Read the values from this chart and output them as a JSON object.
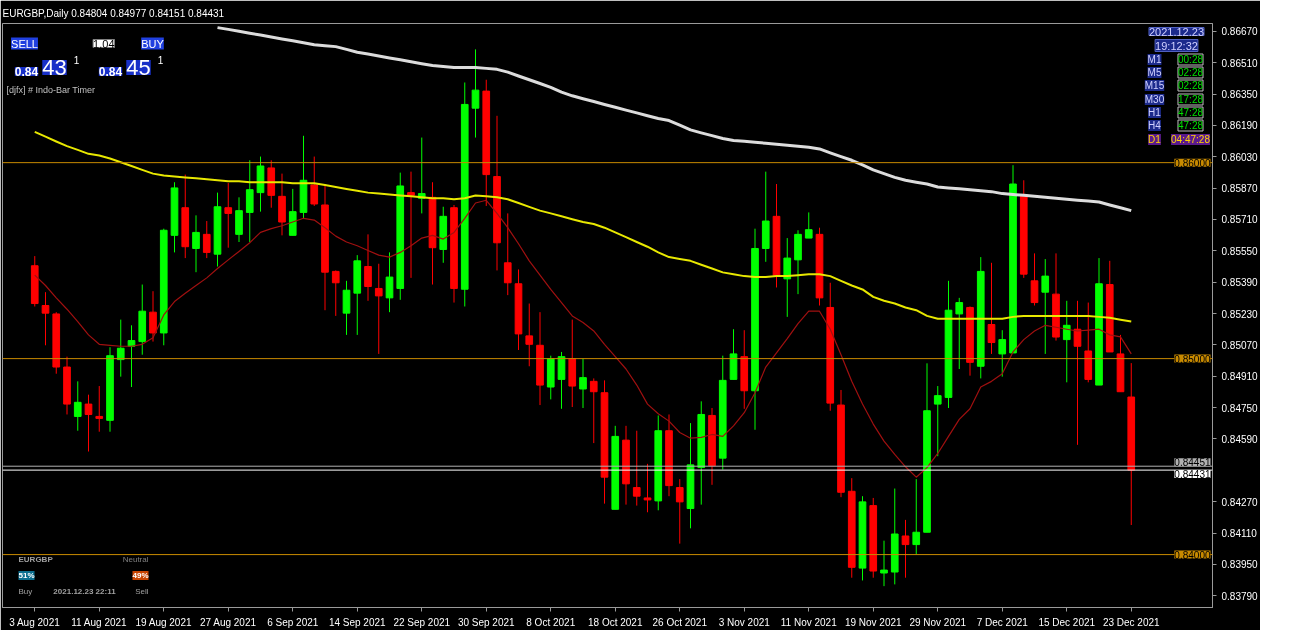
{
  "chart_data": {
    "type": "candlestick",
    "title": "EURGBP,Daily  0.84804 0.84977 0.84151 0.84431",
    "categories": [
      "3 Aug 2021",
      null,
      null,
      null,
      null,
      null,
      "11 Aug 2021",
      null,
      null,
      null,
      null,
      null,
      "19 Aug 2021",
      null,
      null,
      null,
      null,
      null,
      "27 Aug 2021",
      null,
      null,
      null,
      null,
      null,
      "6 Sep 2021",
      null,
      null,
      null,
      null,
      null,
      "14 Sep 2021",
      null,
      null,
      null,
      null,
      null,
      "22 Sep 2021",
      null,
      null,
      null,
      null,
      null,
      "30 Sep 2021",
      null,
      null,
      null,
      null,
      null,
      "8 Oct 2021",
      null,
      null,
      null,
      null,
      null,
      "18 Oct 2021",
      null,
      null,
      null,
      null,
      null,
      "26 Oct 2021",
      null,
      null,
      null,
      null,
      null,
      "3 Nov 2021",
      null,
      null,
      null,
      null,
      null,
      "11 Nov 2021",
      null,
      null,
      null,
      null,
      null,
      "19 Nov 2021",
      null,
      null,
      null,
      null,
      null,
      "29 Nov 2021",
      null,
      null,
      null,
      null,
      null,
      "7 Dec 2021",
      null,
      null,
      null,
      null,
      null,
      "15 Dec 2021",
      null,
      null,
      null,
      null,
      null,
      "23 Dec 2021"
    ],
    "ohlc": [
      [
        0.85474,
        0.85523,
        0.85266,
        0.85281
      ],
      [
        0.85271,
        0.85339,
        0.85068,
        0.85232
      ],
      [
        0.85228,
        0.85237,
        0.84923,
        0.84957
      ],
      [
        0.84957,
        0.8501,
        0.84715,
        0.84768
      ],
      [
        0.84705,
        0.84884,
        0.84632,
        0.84777
      ],
      [
        0.84768,
        0.84816,
        0.84526,
        0.84715
      ],
      [
        0.84705,
        0.8486,
        0.84627,
        0.84695
      ],
      [
        0.84685,
        0.85058,
        0.84627,
        0.85015
      ],
      [
        0.84995,
        0.85199,
        0.84908,
        0.85053
      ],
      [
        0.85063,
        0.8517,
        0.84855,
        0.85092
      ],
      [
        0.85087,
        0.85378,
        0.8502,
        0.85242
      ],
      [
        0.85237,
        0.85344,
        0.85087,
        0.85131
      ],
      [
        0.85131,
        0.85663,
        0.85068,
        0.85655
      ],
      [
        0.85629,
        0.859,
        0.85542,
        0.85871
      ],
      [
        0.8577,
        0.85939,
        0.85513,
        0.85571
      ],
      [
        0.85562,
        0.85731,
        0.85441,
        0.85644
      ],
      [
        0.85634,
        0.85702,
        0.85513,
        0.85542
      ],
      [
        0.85533,
        0.85847,
        0.8547,
        0.85775
      ],
      [
        0.8577,
        0.85896,
        0.85566,
        0.85741
      ],
      [
        0.85634,
        0.85823,
        0.85595,
        0.85755
      ],
      [
        0.85746,
        0.86012,
        0.85595,
        0.85862
      ],
      [
        0.85847,
        0.86031,
        0.8575,
        0.85983
      ],
      [
        0.85973,
        0.86012,
        0.8577,
        0.85833
      ],
      [
        0.85828,
        0.85944,
        0.85629,
        0.85697
      ],
      [
        0.85629,
        0.85866,
        0.85629,
        0.8575
      ],
      [
        0.85746,
        0.86137,
        0.85712,
        0.8591
      ],
      [
        0.85886,
        0.86031,
        0.85779,
        0.85789
      ],
      [
        0.85784,
        0.85886,
        0.85247,
        0.85441
      ],
      [
        0.85445,
        0.8545,
        0.85218,
        0.85387
      ],
      [
        0.85232,
        0.85397,
        0.85121,
        0.85349
      ],
      [
        0.85334,
        0.85528,
        0.85121,
        0.85499
      ],
      [
        0.8547,
        0.85634,
        0.85295,
        0.85368
      ],
      [
        0.85358,
        0.85484,
        0.85024,
        0.8532
      ],
      [
        0.8531,
        0.85542,
        0.85237,
        0.85416
      ],
      [
        0.85358,
        0.85949,
        0.853,
        0.85881
      ],
      [
        0.85847,
        0.85954,
        0.85412,
        0.85833
      ],
      [
        0.85818,
        0.86128,
        0.85741,
        0.85842
      ],
      [
        0.85823,
        0.859,
        0.85378,
        0.85566
      ],
      [
        0.85557,
        0.85775,
        0.85489,
        0.85726
      ],
      [
        0.8577,
        0.85784,
        0.85286,
        0.85358
      ],
      [
        0.85354,
        0.86409,
        0.85266,
        0.86297
      ],
      [
        0.86278,
        0.86578,
        0.86128,
        0.8637
      ],
      [
        0.86365,
        0.86423,
        0.85779,
        0.85939
      ],
      [
        0.85929,
        0.86239,
        0.8545,
        0.85591
      ],
      [
        0.85489,
        0.85741,
        0.85324,
        0.85387
      ],
      [
        0.85382,
        0.85455,
        0.85044,
        0.85126
      ],
      [
        0.85116,
        0.85281,
        0.84961,
        0.85073
      ],
      [
        0.85068,
        0.85237,
        0.84763,
        0.84865
      ],
      [
        0.84855,
        0.85015,
        0.84792,
        0.85
      ],
      [
        0.84894,
        0.85034,
        0.84744,
        0.8501
      ],
      [
        0.85,
        0.85199,
        0.84753,
        0.8486
      ],
      [
        0.84845,
        0.85,
        0.84748,
        0.84903
      ],
      [
        0.84884,
        0.84899,
        0.84569,
        0.84831
      ],
      [
        0.84826,
        0.84889,
        0.8426,
        0.84395
      ],
      [
        0.84231,
        0.84657,
        0.84231,
        0.84603
      ],
      [
        0.84584,
        0.84657,
        0.84255,
        0.84361
      ],
      [
        0.84342,
        0.84632,
        0.8425,
        0.84298
      ],
      [
        0.84289,
        0.84463,
        0.84216,
        0.84279
      ],
      [
        0.84274,
        0.8471,
        0.84226,
        0.84632
      ],
      [
        0.84632,
        0.84715,
        0.84298,
        0.84352
      ],
      [
        0.84342,
        0.84385,
        0.84056,
        0.84269
      ],
      [
        0.84235,
        0.84671,
        0.84134,
        0.84458
      ],
      [
        0.84444,
        0.84782,
        0.84255,
        0.84715
      ],
      [
        0.8471,
        0.84748,
        0.84356,
        0.84453
      ],
      [
        0.84492,
        0.85015,
        0.84434,
        0.84889
      ],
      [
        0.84894,
        0.8515,
        0.84894,
        0.85024
      ],
      [
        0.8501,
        0.85145,
        0.84744,
        0.84836
      ],
      [
        0.84836,
        0.85663,
        0.84637,
        0.85562
      ],
      [
        0.85562,
        0.85954,
        0.85494,
        0.85702
      ],
      [
        0.85726,
        0.85891,
        0.85363,
        0.85426
      ],
      [
        0.85407,
        0.85615,
        0.85213,
        0.85513
      ],
      [
        0.85504,
        0.85655,
        0.85329,
        0.85634
      ],
      [
        0.85615,
        0.85746,
        0.85615,
        0.85658
      ],
      [
        0.85634,
        0.85668,
        0.85271,
        0.8531
      ],
      [
        0.85261,
        0.85387,
        0.84734,
        0.84773
      ],
      [
        0.84763,
        0.8484,
        0.84293,
        0.84318
      ],
      [
        0.84323,
        0.8439,
        0.83882,
        0.83935
      ],
      [
        0.83931,
        0.84298,
        0.83868,
        0.84269
      ],
      [
        0.8425,
        0.84289,
        0.83882,
        0.83916
      ],
      [
        0.83906,
        0.84071,
        0.83839,
        0.83921
      ],
      [
        0.83911,
        0.84337,
        0.83848,
        0.84105
      ],
      [
        0.84095,
        0.84177,
        0.83882,
        0.84051
      ],
      [
        0.84051,
        0.84385,
        0.84003,
        0.84114
      ],
      [
        0.84114,
        0.84976,
        0.84114,
        0.84734
      ],
      [
        0.84768,
        0.8486,
        0.84502,
        0.84811
      ],
      [
        0.84802,
        0.85397,
        0.84748,
        0.85247
      ],
      [
        0.85228,
        0.8531,
        0.84947,
        0.85286
      ],
      [
        0.85261,
        0.85266,
        0.84913,
        0.84981
      ],
      [
        0.84961,
        0.85518,
        0.84899,
        0.85445
      ],
      [
        0.85174,
        0.85489,
        0.85024,
        0.85082
      ],
      [
        0.85024,
        0.85145,
        0.84908,
        0.85097
      ],
      [
        0.85029,
        0.85987,
        0.85029,
        0.85891
      ],
      [
        0.85837,
        0.8591,
        0.85412,
        0.85431
      ],
      [
        0.85397,
        0.85537,
        0.85271,
        0.85286
      ],
      [
        0.85339,
        0.85508,
        0.85024,
        0.85421
      ],
      [
        0.85329,
        0.85537,
        0.85092,
        0.8511
      ],
      [
        0.85097,
        0.85295,
        0.84879,
        0.8517
      ],
      [
        0.8515,
        0.85295,
        0.8456,
        0.85063
      ],
      [
        0.85039,
        0.85286,
        0.84879,
        0.84894
      ],
      [
        0.84865,
        0.85513,
        0.84865,
        0.85382
      ],
      [
        0.85378,
        0.85499,
        0.85034,
        0.85034
      ],
      [
        0.85024,
        0.85121,
        0.84831,
        0.84831
      ],
      [
        0.84804,
        0.84977,
        0.84151,
        0.84431
      ]
    ],
    "colors": [
      "#ff0000",
      "#ff0000",
      "#ff0000",
      "#ff0000",
      "#00ff00",
      "#ff0000",
      "#ff0000",
      "#00ff00",
      "#00ff00",
      "#00ff00",
      "#00ff00",
      "#ff0000",
      "#00ff00",
      "#00ff00",
      "#ff0000",
      "#00ff00",
      "#ff0000",
      "#00ff00",
      "#ff0000",
      "#00ff00",
      "#00ff00",
      "#00ff00",
      "#ff0000",
      "#ff0000",
      "#00ff00",
      "#00ff00",
      "#ff0000",
      "#ff0000",
      "#ff0000",
      "#00ff00",
      "#00ff00",
      "#ff0000",
      "#ff0000",
      "#00ff00",
      "#00ff00",
      "#ff0000",
      "#00ff00",
      "#ff0000",
      "#00ff00",
      "#ff0000",
      "#00ff00",
      "#00ff00",
      "#ff0000",
      "#ff0000",
      "#ff0000",
      "#ff0000",
      "#ff0000",
      "#ff0000",
      "#00ff00",
      "#00ff00",
      "#ff0000",
      "#00ff00",
      "#ff0000",
      "#ff0000",
      "#00ff00",
      "#ff0000",
      "#ff0000",
      "#ff0000",
      "#00ff00",
      "#ff0000",
      "#ff0000",
      "#00ff00",
      "#00ff00",
      "#ff0000",
      "#00ff00",
      "#00ff00",
      "#ff0000",
      "#00ff00",
      "#00ff00",
      "#ff0000",
      "#00ff00",
      "#00ff00",
      "#00ff00",
      "#ff0000",
      "#ff0000",
      "#ff0000",
      "#ff0000",
      "#00ff00",
      "#ff0000",
      "#00ff00",
      "#00ff00",
      "#ff0000",
      "#00ff00",
      "#00ff00",
      "#00ff00",
      "#00ff00",
      "#00ff00",
      "#ff0000",
      "#00ff00",
      "#ff0000",
      "#00ff00",
      "#00ff00",
      "#ff0000",
      "#ff0000",
      "#00ff00",
      "#ff0000",
      "#00ff00",
      "#ff0000",
      "#ff0000",
      "#00ff00",
      "#ff0000",
      "#ff0000",
      "#ff0000"
    ],
    "series": [
      {
        "type": "line",
        "color": "#dcdcdc",
        "values": [
          null,
          null,
          null,
          null,
          null,
          null,
          null,
          null,
          null,
          null,
          null,
          null,
          null,
          null,
          null,
          null,
          null,
          0.86689,
          0.8668,
          0.8667,
          0.8666,
          0.86651,
          0.86641,
          0.86631,
          0.86622,
          0.86612,
          0.86602,
          0.86597,
          0.86592,
          0.86578,
          0.86563,
          0.86554,
          0.86544,
          0.86534,
          0.86525,
          0.86515,
          0.86505,
          0.86496,
          0.86491,
          0.86486,
          0.86486,
          0.86486,
          0.86481,
          0.86476,
          0.86462,
          0.86442,
          0.86423,
          0.86404,
          0.86384,
          0.8636,
          0.86341,
          0.86326,
          0.86312,
          0.86297,
          0.86283,
          0.86268,
          0.86254,
          0.86239,
          0.86225,
          0.86215,
          0.86191,
          0.86167,
          0.86152,
          0.86138,
          0.86123,
          0.86113,
          0.86109,
          0.86104,
          0.86099,
          0.86094,
          0.86089,
          0.86084,
          0.86079,
          0.8607,
          0.8605,
          0.86031,
          0.86012,
          0.85988,
          0.85963,
          0.85944,
          0.85925,
          0.8591,
          0.859,
          0.85891,
          0.85876,
          0.85871,
          0.85867,
          0.85862,
          0.85857,
          0.85852,
          0.85842,
          0.85837,
          0.85833,
          0.85828,
          0.85823,
          0.85818,
          0.85813,
          0.85808,
          0.85804,
          0.85799,
          0.85784,
          0.8577,
          0.85755
        ]
      },
      {
        "type": "line",
        "color": "#e8e800",
        "values": [
          0.86157,
          0.86133,
          0.86108,
          0.86084,
          0.86065,
          0.86045,
          0.86036,
          0.86021,
          0.86002,
          0.85983,
          0.85963,
          0.85944,
          0.85934,
          0.85929,
          0.85924,
          0.8592,
          0.85915,
          0.8591,
          0.85905,
          0.85905,
          0.859,
          0.859,
          0.859,
          0.859,
          0.85895,
          0.85895,
          0.85895,
          0.85886,
          0.85876,
          0.85866,
          0.85857,
          0.85847,
          0.85842,
          0.85837,
          0.85832,
          0.85828,
          0.85823,
          0.85818,
          0.85818,
          0.85813,
          0.85818,
          0.85832,
          0.85828,
          0.85823,
          0.85813,
          0.85794,
          0.85774,
          0.85755,
          0.85741,
          0.85726,
          0.85711,
          0.85697,
          0.85687,
          0.85668,
          0.85644,
          0.8562,
          0.85595,
          0.85571,
          0.85542,
          0.85518,
          0.85508,
          0.85499,
          0.85479,
          0.8546,
          0.8544,
          0.85431,
          0.85421,
          0.85416,
          0.85416,
          0.85421,
          0.85421,
          0.85426,
          0.85431,
          0.85431,
          0.85421,
          0.85397,
          0.85373,
          0.85353,
          0.85315,
          0.85295,
          0.85281,
          0.85261,
          0.85247,
          0.85218,
          0.85203,
          0.85203,
          0.85203,
          0.85203,
          0.85203,
          0.85203,
          0.85203,
          0.85213,
          0.85218,
          0.85218,
          0.85218,
          0.85218,
          0.85218,
          0.85218,
          0.85218,
          0.85213,
          0.85208,
          0.85198,
          0.85189
        ]
      },
      {
        "type": "line",
        "color": "#a01010",
        "values": [
          0.85426,
          0.85373,
          0.8531,
          0.85252,
          0.85189,
          0.85121,
          0.85073,
          0.85068,
          0.85063,
          0.85063,
          0.85073,
          0.85107,
          0.85223,
          0.85291,
          0.85334,
          0.85373,
          0.85412,
          0.8546,
          0.85504,
          0.85547,
          0.85591,
          0.85644,
          0.85663,
          0.85678,
          0.85697,
          0.85716,
          0.85707,
          0.85668,
          0.85625,
          0.85595,
          0.85576,
          0.85552,
          0.85528,
          0.85518,
          0.85542,
          0.85576,
          0.85615,
          0.85629,
          0.8561,
          0.85644,
          0.85716,
          0.85794,
          0.85808,
          0.85741,
          0.85668,
          0.85586,
          0.85499,
          0.85426,
          0.85353,
          0.85286,
          0.85218,
          0.85184,
          0.85141,
          0.85073,
          0.8501,
          0.84947,
          0.84865,
          0.84768,
          0.84719,
          0.84681,
          0.84623,
          0.84594,
          0.84598,
          0.84613,
          0.84603,
          0.84657,
          0.84724,
          0.84826,
          0.84957,
          0.85029,
          0.85102,
          0.85179,
          0.85242,
          0.85242,
          0.8515,
          0.8502,
          0.84884,
          0.84768,
          0.84666,
          0.84579,
          0.84511,
          0.84448,
          0.84395,
          0.84444,
          0.84516,
          0.84603,
          0.8469,
          0.84744,
          0.84855,
          0.84884,
          0.84923,
          0.85034,
          0.85097,
          0.85141,
          0.8517,
          0.8516,
          0.8515,
          0.85141,
          0.85145,
          0.8515,
          0.85121,
          0.85111,
          0.85024
        ]
      }
    ],
    "ylim": [
      0.8373,
      0.8671
    ],
    "yticks": [
      {
        "value": 0.8667,
        "label": "0.86670"
      },
      {
        "value": 0.8651,
        "label": "0.86510"
      },
      {
        "value": 0.8635,
        "label": "0.86350"
      },
      {
        "value": 0.8619,
        "label": "0.86190"
      },
      {
        "value": 0.8603,
        "label": "0.86030"
      },
      {
        "value": 0.8587,
        "label": "0.85870"
      },
      {
        "value": 0.8571,
        "label": "0.85710"
      },
      {
        "value": 0.8555,
        "label": "0.85550"
      },
      {
        "value": 0.8539,
        "label": "0.85390"
      },
      {
        "value": 0.8523,
        "label": "0.85230"
      },
      {
        "value": 0.8507,
        "label": "0.85070"
      },
      {
        "value": 0.8491,
        "label": "0.84910"
      },
      {
        "value": 0.8475,
        "label": "0.84750"
      },
      {
        "value": 0.8459,
        "label": "0.84590"
      },
      {
        "value": 0.8427,
        "label": "0.84270"
      },
      {
        "value": 0.8411,
        "label": "0.84110"
      },
      {
        "value": 0.8395,
        "label": "0.83950"
      },
      {
        "value": 0.8379,
        "label": "0.83790"
      }
    ],
    "ref_lines": [
      {
        "axis": "y",
        "value": 0.86,
        "label": "0.86000",
        "color": "#c88a00"
      },
      {
        "axis": "y",
        "value": 0.85,
        "label": "0.85000",
        "color": "#c88a00"
      },
      {
        "axis": "y",
        "value": 0.84451,
        "label": "0.84451",
        "color": "#b0b0b0"
      },
      {
        "axis": "y",
        "value": 0.84431,
        "label": "0.84431",
        "color": "#ffffff"
      },
      {
        "axis": "y",
        "value": 0.84,
        "label": "0.84000",
        "color": "#c88a00"
      }
    ],
    "annotations": [
      "[djfx] # Indo-Bar Timer",
      "SELL",
      "1.04",
      "BUY",
      "0.84",
      "43",
      "1",
      "0.84",
      "45",
      "1",
      "2021.12.23",
      "19:12:32",
      "M1",
      "00:28",
      "M5",
      "02:28",
      "M15",
      "02:28",
      "M30",
      "17:28",
      "H1",
      "47:28",
      "H4",
      "47:28",
      "D1",
      "04:47:28",
      "EURGBP",
      "Neutral",
      "51%",
      "49%",
      "Buy",
      "2021.12.23 22:11",
      "Sell"
    ]
  }
}
